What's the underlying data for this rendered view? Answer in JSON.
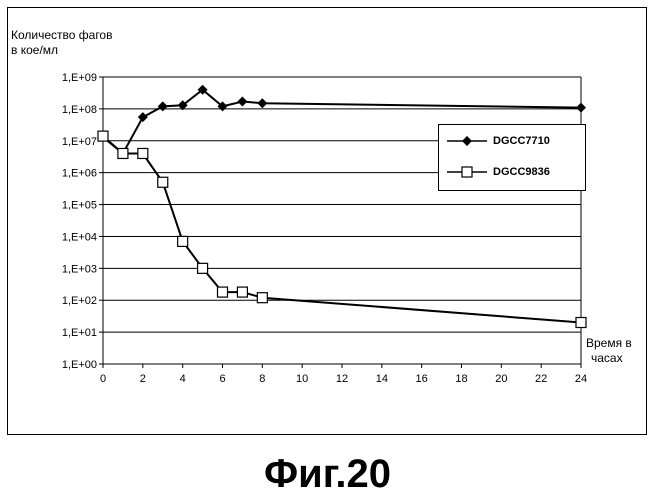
{
  "chart_data": {
    "type": "line",
    "ylabel_lines": [
      "Количество фагов",
      "в кое/мл"
    ],
    "xlabel_lines": [
      "Время в",
      "часах"
    ],
    "y_scale": "log",
    "ylim": [
      1,
      1000000000
    ],
    "xlim": [
      0,
      24
    ],
    "x_ticks": [
      "0",
      "2",
      "4",
      "6",
      "8",
      "10",
      "12",
      "14",
      "16",
      "18",
      "20",
      "22",
      "24"
    ],
    "y_ticks": [
      "1,E+00",
      "1,E+01",
      "1,E+02",
      "1,E+03",
      "1,E+04",
      "1,E+05",
      "1,E+06",
      "1,E+07",
      "1,E+08",
      "1,E+09"
    ],
    "grid": "horizontal",
    "legend_position": "right",
    "series": [
      {
        "name": "DGCC7710",
        "marker": "filled-diamond",
        "x": [
          0,
          1,
          2,
          3,
          4,
          5,
          6,
          7,
          8,
          24
        ],
        "y": [
          13000000,
          4000000,
          55000000,
          120000000,
          130000000,
          400000000,
          120000000,
          170000000,
          150000000,
          110000000
        ]
      },
      {
        "name": "DGCC9836",
        "marker": "open-square",
        "x": [
          0,
          1,
          2,
          3,
          4,
          5,
          6,
          7,
          8,
          24
        ],
        "y": [
          14000000,
          4000000,
          4000000,
          500000,
          7000,
          1000,
          180,
          180,
          120,
          20
        ]
      }
    ]
  },
  "caption": "Фиг.20"
}
